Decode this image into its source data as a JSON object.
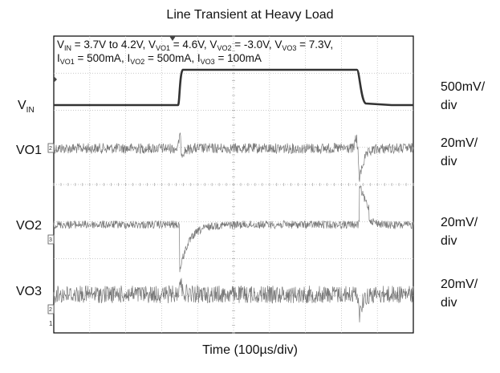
{
  "chart_data": {
    "type": "line",
    "title": "Line Transient at Heavy Load",
    "xlabel": "Time (100µs/div)",
    "conditions": {
      "vin": {
        "sym": "V",
        "sub": "IN",
        "text": " = 3.7V to 4.2V, "
      },
      "vo1": {
        "sym": "V",
        "sub": "VO1",
        "text": " = 4.6V, "
      },
      "vo2": {
        "sym": "V",
        "sub": "VO2",
        "text": " = -3.0V, "
      },
      "vo3": {
        "sym": "V",
        "sub": "VO3",
        "text": " = 7.3V,"
      },
      "io1": {
        "sym": "I",
        "sub": "VO1",
        "text": " = 500mA, "
      },
      "io2": {
        "sym": "I",
        "sub": "VO2",
        "text": " = 500mA, "
      },
      "io3": {
        "sym": "I",
        "sub": "VO3",
        "text": " = 100mA"
      }
    },
    "grid": true,
    "divisions": {
      "x": 10,
      "y": 8
    },
    "series": [
      {
        "name": "V",
        "name_sub": "IN",
        "scale": "500mV/",
        "scale2": "div",
        "low": "3.7V",
        "high": "4.2V",
        "step_up_div": 3.5,
        "step_down_div": 8.5
      },
      {
        "name": "VO1",
        "scale": "20mV/",
        "scale2": "div",
        "event_divs": [
          3.5,
          8.5
        ]
      },
      {
        "name": "VO2",
        "scale": "20mV/",
        "scale2": "div",
        "event_divs": [
          3.5,
          8.5
        ]
      },
      {
        "name": "VO3",
        "scale": "20mV/",
        "scale2": "div",
        "event_divs": [
          3.5,
          8.5
        ]
      }
    ],
    "channel_markers": [
      "2",
      "3",
      "1"
    ]
  }
}
